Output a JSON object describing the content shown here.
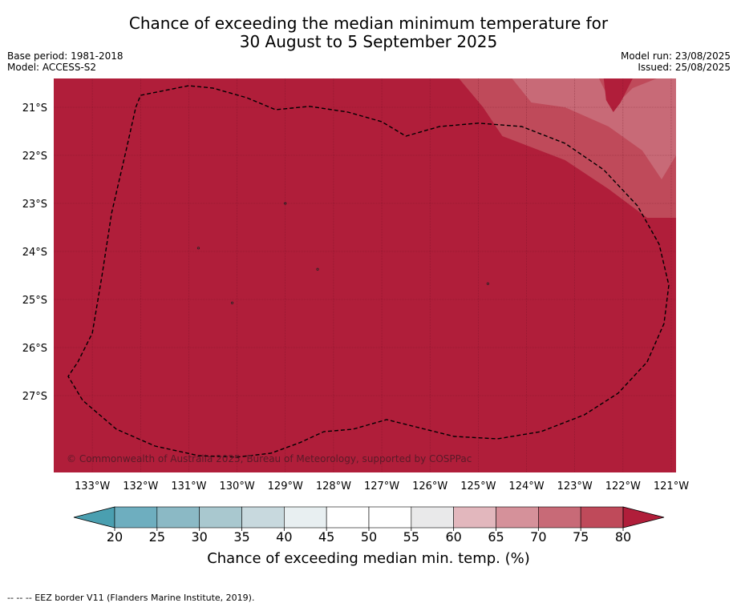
{
  "title_line1": "Chance of exceeding the median minimum temperature for",
  "title_line2": "30 August to 5 September 2025",
  "base_period": "Base period: 1981-2018",
  "model": "Model: ACCESS-S2",
  "model_run": "Model run: 23/08/2025",
  "issued": "Issued: 25/08/2025",
  "map": {
    "lon_min": -133.8,
    "lon_max": -120.9,
    "lat_max": -20.4,
    "lat_min": -28.6,
    "lon_ticks": [
      -133,
      -132,
      -131,
      -130,
      -129,
      -128,
      -127,
      -126,
      -125,
      -124,
      -123,
      -122,
      -121
    ],
    "lon_tick_labels": [
      "133°W",
      "132°W",
      "131°W",
      "130°W",
      "129°W",
      "128°W",
      "127°W",
      "126°W",
      "125°W",
      "124°W",
      "123°W",
      "122°W",
      "121°W"
    ],
    "lat_ticks": [
      -21,
      -22,
      -23,
      -24,
      -25,
      -26,
      -27
    ],
    "lat_tick_labels": [
      "21°S",
      "22°S",
      "23°S",
      "24°S",
      "25°S",
      "26°S",
      "27°S"
    ],
    "background_category": ">80",
    "regions": [
      {
        "category": "75-80",
        "points": [
          [
            -125.4,
            -20.4
          ],
          [
            -120.9,
            -20.4
          ],
          [
            -120.9,
            -23.3
          ],
          [
            -121.5,
            -23.3
          ],
          [
            -122.3,
            -22.7
          ],
          [
            -123.2,
            -22.1
          ],
          [
            -124.5,
            -21.6
          ],
          [
            -124.9,
            -21.0
          ]
        ]
      },
      {
        "category": "70-75",
        "points": [
          [
            -124.3,
            -20.4
          ],
          [
            -122.5,
            -20.4
          ],
          [
            -122.2,
            -21.0
          ],
          [
            -121.8,
            -20.6
          ],
          [
            -121.3,
            -20.4
          ],
          [
            -120.9,
            -20.4
          ],
          [
            -120.9,
            -22.0
          ],
          [
            -121.2,
            -22.5
          ],
          [
            -121.6,
            -21.9
          ],
          [
            -122.3,
            -21.4
          ],
          [
            -123.2,
            -21.0
          ],
          [
            -123.9,
            -20.9
          ]
        ]
      },
      {
        "category": ">80",
        "points": [
          [
            -122.4,
            -20.4
          ],
          [
            -121.8,
            -20.4
          ],
          [
            -122.05,
            -20.9
          ],
          [
            -122.2,
            -21.1
          ],
          [
            -122.35,
            -20.85
          ]
        ]
      }
    ],
    "eez_border": [
      [
        -132.0,
        -20.75
      ],
      [
        -131.0,
        -20.55
      ],
      [
        -130.5,
        -20.6
      ],
      [
        -129.8,
        -20.8
      ],
      [
        -129.2,
        -21.05
      ],
      [
        -128.5,
        -20.98
      ],
      [
        -127.7,
        -21.1
      ],
      [
        -127.0,
        -21.3
      ],
      [
        -126.5,
        -21.6
      ],
      [
        -125.8,
        -21.4
      ],
      [
        -125.0,
        -21.33
      ],
      [
        -124.1,
        -21.4
      ],
      [
        -123.2,
        -21.75
      ],
      [
        -122.4,
        -22.3
      ],
      [
        -121.7,
        -23.05
      ],
      [
        -121.25,
        -23.85
      ],
      [
        -121.05,
        -24.7
      ],
      [
        -121.15,
        -25.5
      ],
      [
        -121.5,
        -26.3
      ],
      [
        -122.1,
        -26.95
      ],
      [
        -122.8,
        -27.4
      ],
      [
        -123.7,
        -27.75
      ],
      [
        -124.6,
        -27.9
      ],
      [
        -125.5,
        -27.85
      ],
      [
        -126.3,
        -27.65
      ],
      [
        -126.9,
        -27.5
      ],
      [
        -127.6,
        -27.7
      ],
      [
        -128.2,
        -27.75
      ],
      [
        -128.7,
        -27.98
      ],
      [
        -129.3,
        -28.2
      ],
      [
        -130.0,
        -28.28
      ],
      [
        -130.8,
        -28.25
      ],
      [
        -131.7,
        -28.05
      ],
      [
        -132.5,
        -27.7
      ],
      [
        -133.2,
        -27.1
      ],
      [
        -133.5,
        -26.6
      ],
      [
        -133.3,
        -26.3
      ],
      [
        -133.0,
        -25.7
      ],
      [
        -132.8,
        -24.5
      ],
      [
        -132.6,
        -23.2
      ],
      [
        -132.3,
        -21.9
      ],
      [
        -132.1,
        -21.0
      ],
      [
        -132.0,
        -20.75
      ]
    ],
    "islands": [
      [
        -128.33,
        -24.37
      ],
      [
        -124.8,
        -24.67
      ],
      [
        -130.8,
        -23.93
      ],
      [
        -129.0,
        -23.0
      ],
      [
        -130.1,
        -25.07
      ]
    ],
    "copyright": "© Commonwealth of Australia 2025, Bureau of Meteorology, supported by COSPPac"
  },
  "colorbar": {
    "ticks": [
      "20",
      "25",
      "30",
      "35",
      "40",
      "45",
      "50",
      "55",
      "60",
      "65",
      "70",
      "75",
      "80"
    ],
    "under_color": "#4a9fb0",
    "colors": [
      "#6eaebf",
      "#8bb9c5",
      "#a9c8cf",
      "#c8d9de",
      "#e8eff1",
      "#ffffff",
      "#ffffff",
      "#e9e9ea",
      "#e2b7bd",
      "#d5919a",
      "#c86a77",
      "#bf4a5a"
    ],
    "over_color": "#b01e3a",
    "label": "Chance of exceeding median min. temp. (%)"
  },
  "category_colors": {
    ">80": "#b01e3a",
    "75-80": "#bf4a5a",
    "70-75": "#c86a77"
  },
  "footer": "--  --  -- EEZ border V11 (Flanders Marine Institute, 2019)."
}
